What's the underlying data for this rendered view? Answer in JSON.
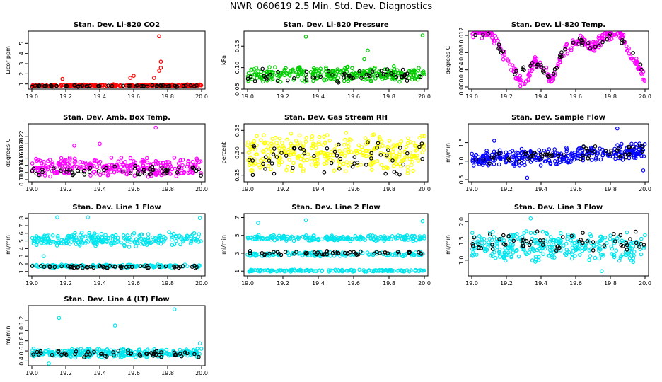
{
  "title": "NWR_060619  2.5 Min. Std. Dev. Diagnostics",
  "colors": {
    "black": "#000000",
    "red": "#ff0000",
    "green": "#00cc00",
    "magenta": "#ff00ff",
    "yellow": "#ffff00",
    "blue": "#0000ff",
    "cyan": "#00e5ee"
  },
  "chart_data": [
    {
      "type": "scatter",
      "title": "Stan. Dev. Li-820 CO2",
      "ylabel": "Licor ppm",
      "xlim": [
        19.0,
        20.0
      ],
      "ylim": [
        0.7,
        6.0
      ],
      "xticks": [
        "19.0",
        "19.2",
        "19.4",
        "19.6",
        "19.8",
        "20.0"
      ],
      "yticks": [
        "1",
        "2",
        "3",
        "4",
        "5"
      ],
      "series": [
        {
          "name": "main",
          "color": "#ff0000",
          "bands": [
            {
              "center": 0.85,
              "spread": 0.12,
              "n": 260
            }
          ],
          "outliers": [
            [
              19.18,
              1.5
            ],
            [
              19.58,
              1.6
            ],
            [
              19.6,
              1.8
            ],
            [
              19.75,
              5.7
            ],
            [
              19.76,
              3.2
            ],
            [
              19.76,
              2.6
            ],
            [
              19.75,
              2.3
            ],
            [
              19.72,
              1.6
            ]
          ]
        },
        {
          "name": "black",
          "color": "#000000",
          "bands": [
            {
              "center": 0.8,
              "spread": 0.08,
              "n": 55
            }
          ]
        }
      ]
    },
    {
      "type": "scatter",
      "title": "Stan. Dev. Li-820 Pressure",
      "ylabel": "kPa",
      "xlim": [
        19.0,
        20.0
      ],
      "ylim": [
        0.055,
        0.18
      ],
      "xticks": [
        "19.0",
        "19.2",
        "19.4",
        "19.6",
        "19.8",
        "20.0"
      ],
      "yticks": [
        "0.05",
        "0.10",
        "0.15"
      ],
      "series": [
        {
          "name": "main",
          "color": "#00cc00",
          "bands": [
            {
              "center": 0.085,
              "spread": 0.02,
              "n": 300
            }
          ],
          "outliers": [
            [
              19.33,
              0.172
            ],
            [
              19.66,
              0.12
            ],
            [
              19.99,
              0.175
            ],
            [
              19.68,
              0.14
            ]
          ]
        },
        {
          "name": "black",
          "color": "#000000",
          "bands": [
            {
              "center": 0.082,
              "spread": 0.018,
              "n": 55
            }
          ]
        }
      ]
    },
    {
      "type": "scatter",
      "title": "Stan. Dev. Li-820 Temp.",
      "ylabel": "degrees C",
      "xlim": [
        19.0,
        20.0
      ],
      "ylim": [
        0.0,
        0.0125
      ],
      "xticks": [
        "19.0",
        "19.2",
        "19.4",
        "19.6",
        "19.8",
        "20.0"
      ],
      "yticks": [
        "0.000",
        "0.004",
        "0.008",
        "0.012"
      ],
      "series": [
        {
          "name": "main",
          "color": "#ff00ff",
          "curve": [
            [
              19.0,
              0.0125
            ],
            [
              19.1,
              0.0125
            ],
            [
              19.18,
              0.008
            ],
            [
              19.25,
              0.003
            ],
            [
              19.3,
              0.0
            ],
            [
              19.36,
              0.006
            ],
            [
              19.42,
              0.004
            ],
            [
              19.46,
              0.001
            ],
            [
              19.52,
              0.008
            ],
            [
              19.62,
              0.011
            ],
            [
              19.7,
              0.009
            ],
            [
              19.78,
              0.0125
            ],
            [
              19.86,
              0.012
            ],
            [
              19.94,
              0.006
            ],
            [
              20.0,
              0.002
            ]
          ],
          "spread": 0.0015,
          "n": 260
        },
        {
          "name": "black",
          "color": "#000000",
          "curve": [
            [
              19.0,
              0.0125
            ],
            [
              19.1,
              0.012
            ],
            [
              19.18,
              0.008
            ],
            [
              19.25,
              0.003
            ],
            [
              19.36,
              0.006
            ],
            [
              19.46,
              0.002
            ],
            [
              19.52,
              0.008
            ],
            [
              19.62,
              0.011
            ],
            [
              19.7,
              0.009
            ],
            [
              19.8,
              0.012
            ],
            [
              19.9,
              0.01
            ],
            [
              20.0,
              0.003
            ]
          ],
          "spread": 0.001,
          "n": 55
        }
      ]
    },
    {
      "type": "scatter",
      "title": "Stan. Dev. Amb. Box Temp.",
      "ylabel": "degrees C",
      "xlim": [
        19.0,
        20.0
      ],
      "ylim": [
        0.1,
        0.25
      ],
      "xticks": [
        "19.0",
        "19.2",
        "19.4",
        "19.6",
        "19.8",
        "20.0"
      ],
      "yticks": [
        "0.10",
        "0.12",
        "0.14",
        "0.16",
        "0.18",
        "0.20",
        "0.22"
      ],
      "series": [
        {
          "name": "main",
          "color": "#ff00ff",
          "bands": [
            {
              "center": 0.135,
              "spread": 0.03,
              "n": 300
            }
          ],
          "outliers": [
            [
              19.73,
              0.245
            ],
            [
              19.4,
              0.2
            ],
            [
              19.25,
              0.195
            ]
          ]
        },
        {
          "name": "black",
          "color": "#000000",
          "bands": [
            {
              "center": 0.125,
              "spread": 0.015,
              "n": 55
            }
          ]
        }
      ]
    },
    {
      "type": "scatter",
      "title": "Stan. Dev. Gas Stream RH",
      "ylabel": "percent",
      "xlim": [
        19.0,
        20.0
      ],
      "ylim": [
        0.24,
        0.36
      ],
      "xticks": [
        "19.0",
        "19.2",
        "19.4",
        "19.6",
        "19.8",
        "20.0"
      ],
      "yticks": [
        "0.25",
        "0.30",
        "0.35"
      ],
      "series": [
        {
          "name": "main",
          "color": "#ffff00",
          "bands": [
            {
              "center": 0.3,
              "spread": 0.05,
              "n": 320
            }
          ]
        },
        {
          "name": "black",
          "color": "#000000",
          "bands": [
            {
              "center": 0.29,
              "spread": 0.05,
              "n": 55
            }
          ]
        }
      ]
    },
    {
      "type": "scatter",
      "title": "Stan. Dev. Sample Flow",
      "ylabel": "ml/min",
      "xlim": [
        19.0,
        20.0
      ],
      "ylim": [
        0.5,
        1.95
      ],
      "xticks": [
        "19.0",
        "19.2",
        "19.4",
        "19.6",
        "19.8",
        "20.0"
      ],
      "yticks": [
        "0.5",
        "1.0",
        "1.5"
      ],
      "series": [
        {
          "name": "main",
          "color": "#0000ff",
          "curve": [
            [
              19.0,
              1.05
            ],
            [
              19.5,
              1.12
            ],
            [
              20.0,
              1.3
            ]
          ],
          "spread": 0.25,
          "n": 320,
          "outliers": [
            [
              19.84,
              1.88
            ],
            [
              19.32,
              0.55
            ],
            [
              19.99,
              0.75
            ],
            [
              19.13,
              1.55
            ]
          ]
        },
        {
          "name": "black",
          "color": "#000000",
          "curve": [
            [
              19.0,
              1.05
            ],
            [
              20.0,
              1.3
            ]
          ],
          "spread": 0.2,
          "n": 55
        }
      ]
    },
    {
      "type": "scatter",
      "title": "Stan. Dev. Line 1 Flow",
      "ylabel": "ml/min",
      "xlim": [
        19.0,
        20.0
      ],
      "ylim": [
        0.7,
        8.3
      ],
      "xticks": [
        "19.0",
        "19.2",
        "19.4",
        "19.6",
        "19.8",
        "20.0"
      ],
      "yticks": [
        "1",
        "2",
        "3",
        "4",
        "5",
        "6",
        "7",
        "8"
      ],
      "series": [
        {
          "name": "main",
          "color": "#00e5ee",
          "bands": [
            {
              "center": 5.2,
              "spread": 1.0,
              "n": 250
            },
            {
              "center": 1.7,
              "spread": 0.25,
              "n": 160
            }
          ],
          "outliers": [
            [
              19.15,
              8.1
            ],
            [
              19.33,
              8.1
            ],
            [
              19.99,
              8.0
            ],
            [
              19.07,
              3.0
            ]
          ]
        },
        {
          "name": "black",
          "color": "#000000",
          "bands": [
            {
              "center": 1.6,
              "spread": 0.2,
              "n": 55
            }
          ]
        }
      ]
    },
    {
      "type": "scatter",
      "title": "Stan. Dev. Line 2 Flow",
      "ylabel": "ml/min",
      "xlim": [
        19.0,
        20.0
      ],
      "ylim": [
        0.7,
        7.2
      ],
      "xticks": [
        "19.0",
        "19.2",
        "19.4",
        "19.6",
        "19.8",
        "20.0"
      ],
      "yticks": [
        "1",
        "3",
        "5",
        "7"
      ],
      "series": [
        {
          "name": "main",
          "color": "#00e5ee",
          "bands": [
            {
              "center": 4.7,
              "spread": 0.35,
              "n": 200
            },
            {
              "center": 2.9,
              "spread": 0.3,
              "n": 150
            },
            {
              "center": 1.05,
              "spread": 0.12,
              "n": 160
            }
          ],
          "outliers": [
            [
              19.06,
              6.4
            ],
            [
              19.33,
              6.7
            ],
            [
              19.99,
              6.6
            ]
          ]
        },
        {
          "name": "black",
          "color": "#000000",
          "bands": [
            {
              "center": 3.0,
              "spread": 0.3,
              "n": 55
            }
          ]
        }
      ]
    },
    {
      "type": "scatter",
      "title": "Stan. Dev. Line 3 Flow",
      "ylabel": "ml/min",
      "xlim": [
        19.0,
        20.0
      ],
      "ylim": [
        0.65,
        2.15
      ],
      "xticks": [
        "19.0",
        "19.2",
        "19.4",
        "19.6",
        "19.8",
        "20.0"
      ],
      "yticks": [
        "1.0",
        "1.5",
        "2.0"
      ],
      "series": [
        {
          "name": "main",
          "color": "#00e5ee",
          "bands": [
            {
              "center": 1.35,
              "spread": 0.45,
              "n": 320
            }
          ],
          "outliers": [
            [
              19.34,
              2.08
            ],
            [
              19.75,
              0.72
            ]
          ]
        },
        {
          "name": "black",
          "color": "#000000",
          "bands": [
            {
              "center": 1.45,
              "spread": 0.35,
              "n": 55
            }
          ]
        }
      ]
    },
    {
      "type": "scatter",
      "title": "Stan. Dev. Line 4 (LT) Flow",
      "ylabel": "ml/min",
      "xlim": [
        19.0,
        20.0
      ],
      "ylim": [
        0.35,
        1.45
      ],
      "xticks": [
        "19.0",
        "19.2",
        "19.4",
        "19.6",
        "19.8",
        "20.0"
      ],
      "yticks": [
        "0.4",
        "0.6",
        "0.8",
        "1.0",
        "1.2"
      ],
      "series": [
        {
          "name": "main",
          "color": "#00e5ee",
          "bands": [
            {
              "center": 0.56,
              "spread": 0.1,
              "n": 300
            }
          ],
          "outliers": [
            [
              19.16,
              1.25
            ],
            [
              19.49,
              1.1
            ],
            [
              19.84,
              1.42
            ],
            [
              19.99,
              0.75
            ],
            [
              19.1,
              0.35
            ]
          ]
        },
        {
          "name": "black",
          "color": "#000000",
          "bands": [
            {
              "center": 0.55,
              "spread": 0.08,
              "n": 55
            }
          ]
        }
      ]
    }
  ]
}
